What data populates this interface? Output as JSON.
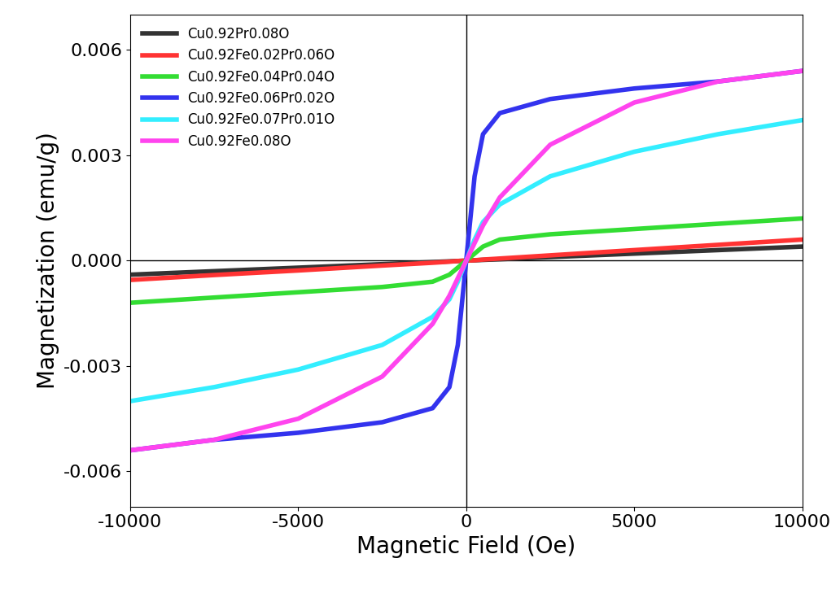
{
  "chart_data": {
    "type": "line",
    "x_label": "Magnetic Field (Oe)",
    "y_label": "Magnetization (emu/g)",
    "x": [
      -10000,
      -7500,
      -5000,
      -2500,
      -1000,
      -500,
      -250,
      0,
      250,
      500,
      1000,
      2500,
      5000,
      7500,
      10000
    ],
    "series": [
      {
        "name": "Cu0.92Pr0.08O",
        "color": "#333333",
        "values": [
          -0.0004,
          -0.0003,
          -0.0002,
          -0.0001,
          -4e-05,
          -2e-05,
          -1e-05,
          0,
          1e-05,
          2e-05,
          4e-05,
          0.0001,
          0.0002,
          0.0003,
          0.0004
        ]
      },
      {
        "name": "Cu0.92Fe0.02Pr0.06O",
        "color": "#ff3333",
        "values": [
          -0.00055,
          -0.00041,
          -0.00028,
          -0.00014,
          -6e-05,
          -3e-05,
          -1e-05,
          0,
          1e-05,
          3e-05,
          6e-05,
          0.00015,
          0.0003,
          0.00045,
          0.0006
        ]
      },
      {
        "name": "Cu0.92Fe0.04Pr0.04O",
        "color": "#33dd33",
        "values": [
          -0.0012,
          -0.00105,
          -0.0009,
          -0.00075,
          -0.0006,
          -0.0004,
          -0.0002,
          0,
          0.0002,
          0.0004,
          0.0006,
          0.00075,
          0.0009,
          0.00105,
          0.0012
        ]
      },
      {
        "name": "Cu0.92Fe0.06Pr0.02O",
        "color": "#3333ee",
        "values": [
          -0.0054,
          -0.0051,
          -0.0049,
          -0.0046,
          -0.0042,
          -0.0036,
          -0.0024,
          0,
          0.0024,
          0.0036,
          0.0042,
          0.0046,
          0.0049,
          0.0051,
          0.0054
        ]
      },
      {
        "name": "Cu0.92Fe0.07Pr0.01O",
        "color": "#33eeff",
        "values": [
          -0.004,
          -0.0036,
          -0.0031,
          -0.0024,
          -0.0016,
          -0.0011,
          -0.0006,
          0,
          0.0006,
          0.0011,
          0.0016,
          0.0024,
          0.0031,
          0.0036,
          0.004
        ]
      },
      {
        "name": "Cu0.92Fe0.08O",
        "color": "#ff44ee",
        "values": [
          -0.0054,
          -0.0051,
          -0.0045,
          -0.0033,
          -0.0018,
          -0.001,
          -0.0005,
          0,
          0.0005,
          0.001,
          0.0018,
          0.0033,
          0.0045,
          0.0051,
          0.0054
        ]
      }
    ],
    "xlim": [
      -10000,
      10000
    ],
    "xticks": [
      -10000,
      -5000,
      0,
      5000,
      10000
    ],
    "ylim": [
      -0.007,
      0.007
    ],
    "yticks": [
      -0.006,
      -0.003,
      {
        "value": 0,
        "label": "0.000"
      },
      0.003,
      0.006
    ],
    "legend": "upper left",
    "grid": false
  }
}
